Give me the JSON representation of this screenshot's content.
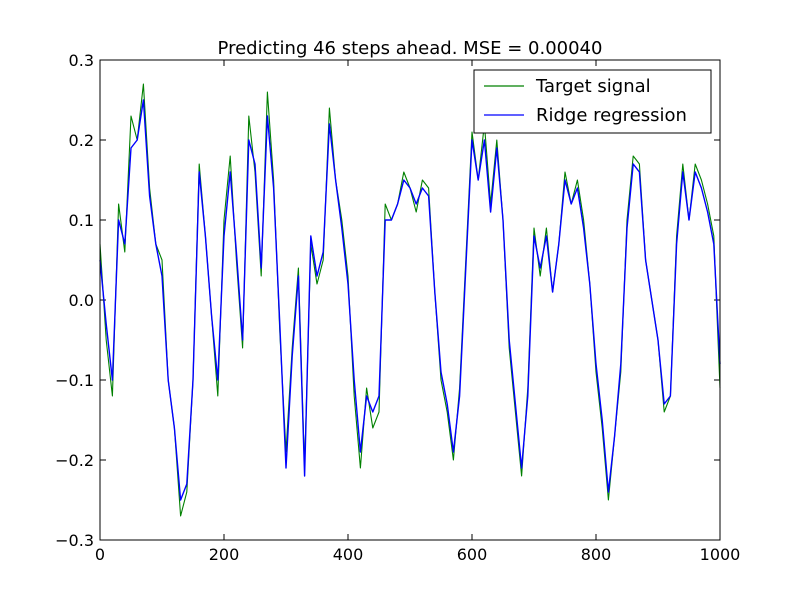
{
  "chart_data": {
    "type": "line",
    "title": "Predicting 46 steps ahead. MSE = 0.00040",
    "xlabel": "",
    "ylabel": "",
    "xlim": [
      0,
      1000
    ],
    "ylim": [
      -0.3,
      0.3
    ],
    "xticks": [
      0,
      200,
      400,
      600,
      800,
      1000
    ],
    "xtick_labels": [
      "0",
      "200",
      "400",
      "600",
      "800",
      "1000"
    ],
    "yticks": [
      -0.3,
      -0.2,
      -0.1,
      0.0,
      0.1,
      0.2,
      0.3
    ],
    "ytick_labels": [
      "−0.3",
      "−0.2",
      "−0.1",
      "0.0",
      "0.1",
      "0.2",
      "0.3"
    ],
    "grid": false,
    "legend_position": "top-right",
    "series": [
      {
        "name": "Target signal",
        "color": "#008000",
        "x": [
          0,
          10,
          20,
          30,
          40,
          50,
          60,
          70,
          80,
          90,
          100,
          110,
          120,
          130,
          140,
          150,
          160,
          170,
          180,
          190,
          200,
          210,
          220,
          230,
          240,
          250,
          260,
          270,
          280,
          290,
          300,
          310,
          320,
          330,
          340,
          350,
          360,
          370,
          380,
          390,
          400,
          410,
          420,
          430,
          440,
          450,
          460,
          470,
          480,
          490,
          500,
          510,
          520,
          530,
          540,
          550,
          560,
          570,
          580,
          590,
          600,
          610,
          620,
          630,
          640,
          650,
          660,
          670,
          680,
          690,
          700,
          710,
          720,
          730,
          740,
          750,
          760,
          770,
          780,
          790,
          800,
          810,
          820,
          830,
          840,
          850,
          860,
          870,
          880,
          890,
          900,
          910,
          920,
          930,
          940,
          950,
          960,
          970,
          980,
          990,
          1000
        ],
        "values": [
          0.07,
          -0.05,
          -0.12,
          0.12,
          0.06,
          0.23,
          0.2,
          0.27,
          0.14,
          0.07,
          0.05,
          -0.1,
          -0.16,
          -0.27,
          -0.24,
          -0.1,
          0.17,
          0.08,
          -0.02,
          -0.12,
          0.1,
          0.18,
          0.05,
          -0.06,
          0.23,
          0.16,
          0.03,
          0.26,
          0.15,
          -0.04,
          -0.19,
          -0.06,
          0.04,
          -0.21,
          0.07,
          0.02,
          0.05,
          0.24,
          0.15,
          0.1,
          0.03,
          -0.12,
          -0.21,
          -0.11,
          -0.16,
          -0.14,
          0.12,
          0.1,
          0.12,
          0.16,
          0.14,
          0.11,
          0.15,
          0.14,
          0.01,
          -0.1,
          -0.14,
          -0.2,
          -0.11,
          0.05,
          0.21,
          0.15,
          0.22,
          0.12,
          0.2,
          0.1,
          -0.06,
          -0.14,
          -0.22,
          -0.11,
          0.09,
          0.03,
          0.09,
          0.01,
          0.07,
          0.16,
          0.12,
          0.15,
          0.1,
          0.02,
          -0.09,
          -0.16,
          -0.25,
          -0.17,
          -0.09,
          0.1,
          0.18,
          0.17,
          0.05,
          0.0,
          -0.05,
          -0.14,
          -0.12,
          0.08,
          0.17,
          0.1,
          0.17,
          0.15,
          0.12,
          0.08,
          -0.11
        ]
      },
      {
        "name": "Ridge regression",
        "color": "#0000ff",
        "x": [
          0,
          10,
          20,
          30,
          40,
          50,
          60,
          70,
          80,
          90,
          100,
          110,
          120,
          130,
          140,
          150,
          160,
          170,
          180,
          190,
          200,
          210,
          220,
          230,
          240,
          250,
          260,
          270,
          280,
          290,
          300,
          310,
          320,
          330,
          340,
          350,
          360,
          370,
          380,
          390,
          400,
          410,
          420,
          430,
          440,
          450,
          460,
          470,
          480,
          490,
          500,
          510,
          520,
          530,
          540,
          550,
          560,
          570,
          580,
          590,
          600,
          610,
          620,
          630,
          640,
          650,
          660,
          670,
          680,
          690,
          700,
          710,
          720,
          730,
          740,
          750,
          760,
          770,
          780,
          790,
          800,
          810,
          820,
          830,
          840,
          850,
          860,
          870,
          880,
          890,
          900,
          910,
          920,
          930,
          940,
          950,
          960,
          970,
          980,
          990,
          1000
        ],
        "values": [
          0.05,
          -0.03,
          -0.1,
          0.1,
          0.07,
          0.19,
          0.2,
          0.25,
          0.13,
          0.07,
          0.03,
          -0.1,
          -0.16,
          -0.25,
          -0.23,
          -0.1,
          0.16,
          0.08,
          -0.02,
          -0.1,
          0.08,
          0.16,
          0.06,
          -0.05,
          0.2,
          0.17,
          0.04,
          0.23,
          0.14,
          -0.03,
          -0.21,
          -0.07,
          0.03,
          -0.22,
          0.08,
          0.03,
          0.06,
          0.22,
          0.15,
          0.09,
          0.02,
          -0.1,
          -0.19,
          -0.12,
          -0.14,
          -0.12,
          0.1,
          0.1,
          0.12,
          0.15,
          0.14,
          0.12,
          0.14,
          0.13,
          0.01,
          -0.09,
          -0.13,
          -0.19,
          -0.12,
          0.04,
          0.2,
          0.15,
          0.2,
          0.11,
          0.19,
          0.1,
          -0.05,
          -0.13,
          -0.21,
          -0.12,
          0.08,
          0.04,
          0.08,
          0.01,
          0.07,
          0.15,
          0.12,
          0.14,
          0.09,
          0.02,
          -0.08,
          -0.15,
          -0.24,
          -0.17,
          -0.08,
          0.09,
          0.17,
          0.16,
          0.05,
          0.0,
          -0.05,
          -0.13,
          -0.12,
          0.07,
          0.16,
          0.1,
          0.16,
          0.14,
          0.11,
          0.07,
          -0.08
        ]
      }
    ]
  }
}
